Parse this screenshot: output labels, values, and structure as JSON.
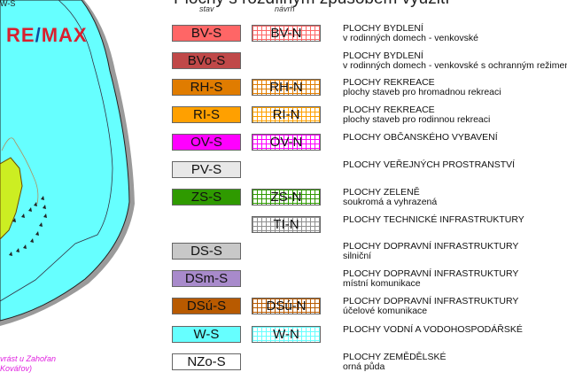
{
  "title": "Plochy s rozdílným způsobem využití",
  "columns": {
    "stav": "stav",
    "navrh": "návrh"
  },
  "map": {
    "corner_label": "W-S",
    "logo": {
      "left": "RE",
      "slash": "/",
      "right": "MAX"
    },
    "note_line1": "vrást u Zahořan",
    "note_line2": "Kovářov)",
    "water_color": "#66ffff"
  },
  "legend": [
    {
      "s": "BV-S",
      "n": "BV-N",
      "title": "PLOCHY BYDLENÍ",
      "sub": "v rodinných domech - venkovské",
      "color": "#ff6666"
    },
    {
      "s": "BVo-S",
      "n": null,
      "title": "PLOCHY BYDLENÍ",
      "sub": "v rodinných domech - venkovské s ochranným režimem",
      "color": "#c04848"
    },
    {
      "s": "RH-S",
      "n": "RH-N",
      "title": "PLOCHY REKREACE",
      "sub": "plochy staveb pro hromadnou rekreaci",
      "color": "#e07c00"
    },
    {
      "s": "RI-S",
      "n": "RI-N",
      "title": "PLOCHY REKREACE",
      "sub": "plochy staveb pro rodinnou rekreaci",
      "color": "#ffa000"
    },
    {
      "s": "OV-S",
      "n": "OV-N",
      "title": "PLOCHY OBČANSKÉHO VYBAVENÍ",
      "sub": "",
      "color": "#ff00ff"
    },
    {
      "s": "PV-S",
      "n": null,
      "title": "PLOCHY VEŘEJNÝCH PROSTRANSTVÍ",
      "sub": "",
      "color": "#e8e8e8"
    },
    {
      "s": "ZS-S",
      "n": "ZS-N",
      "title": "PLOCHY ZELENĚ",
      "sub": "soukromá a vyhrazená",
      "color": "#2f9a00"
    },
    {
      "s": null,
      "n": "TI-N",
      "title": "PLOCHY TECHNICKÉ INFRASTRUKTURY",
      "sub": "",
      "color": "#909090"
    },
    {
      "s": "DS-S",
      "n": null,
      "title": "PLOCHY DOPRAVNÍ INFRASTRUKTURY",
      "sub": "silniční",
      "color": "#c8c8c8"
    },
    {
      "s": "DSm-S",
      "n": null,
      "title": "PLOCHY DOPRAVNÍ INFRASTRUKTURY",
      "sub": "místní komunikace",
      "color": "#a88acb"
    },
    {
      "s": "DSú-S",
      "n": "DSú-N",
      "title": "PLOCHY DOPRAVNÍ INFRASTRUKTURY",
      "sub": "účelové komunikace",
      "color": "#b85a00"
    },
    {
      "s": "W-S",
      "n": "W-N",
      "title": "PLOCHY VODNÍ A VODOHOSPODÁŘSKÉ",
      "sub": "",
      "color": "#66ffff"
    },
    {
      "s": "NZo-S",
      "n": null,
      "title": "PLOCHY ZEMĚDĚLSKÉ",
      "sub": "orná půda",
      "color": "#ffffff"
    }
  ]
}
